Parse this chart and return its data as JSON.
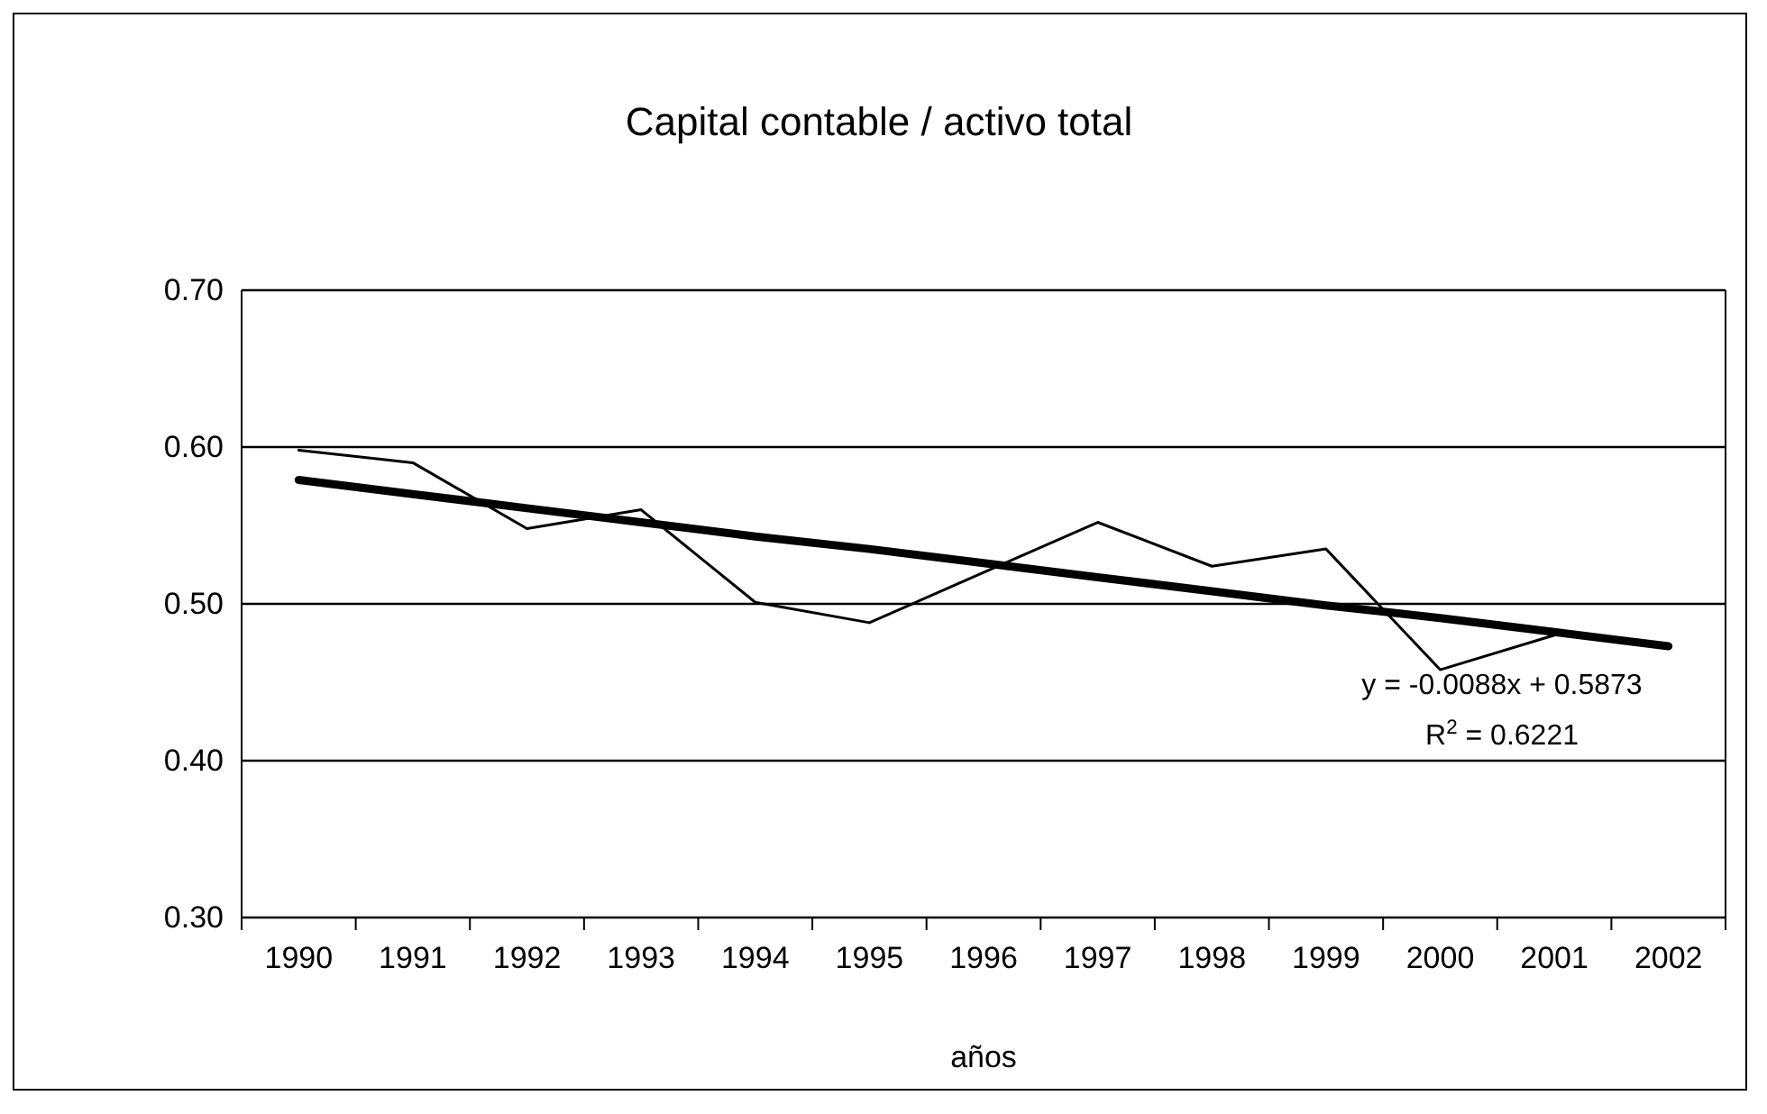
{
  "chart_data": {
    "type": "line",
    "title": "Capital contable / activo total",
    "xlabel": "años",
    "categories": [
      "1990",
      "1991",
      "1992",
      "1993",
      "1994",
      "1995",
      "1996",
      "1997",
      "1998",
      "1999",
      "2000",
      "2001",
      "2002"
    ],
    "series": [
      {
        "color": "#000000",
        "values": [
          0.598,
          0.59,
          0.548,
          0.56,
          0.501,
          0.488,
          0.52,
          0.552,
          0.524,
          0.535,
          0.458,
          0.48,
          null
        ]
      },
      {
        "type": "line",
        "color": "#000000",
        "values": [
          0.579,
          0.57,
          0.561,
          0.552,
          0.543,
          0.535,
          0.526,
          0.517,
          0.508,
          0.499,
          0.491,
          0.482,
          0.473
        ]
      }
    ],
    "ylim": [
      0.3,
      0.7
    ],
    "yticks": [
      {
        "value": 0.3,
        "label": "0.30"
      },
      {
        "value": 0.4,
        "label": "0.40"
      },
      {
        "value": 0.5,
        "label": "0.50"
      },
      {
        "value": 0.6,
        "label": "0.60"
      },
      {
        "value": 0.7,
        "label": "0.70"
      }
    ],
    "grid": "y",
    "marker": "none",
    "line_style": "solid",
    "annotations": [
      "y = -0.0088x + 0.5873",
      "R$^{2}$ = 0.6221"
    ]
  }
}
